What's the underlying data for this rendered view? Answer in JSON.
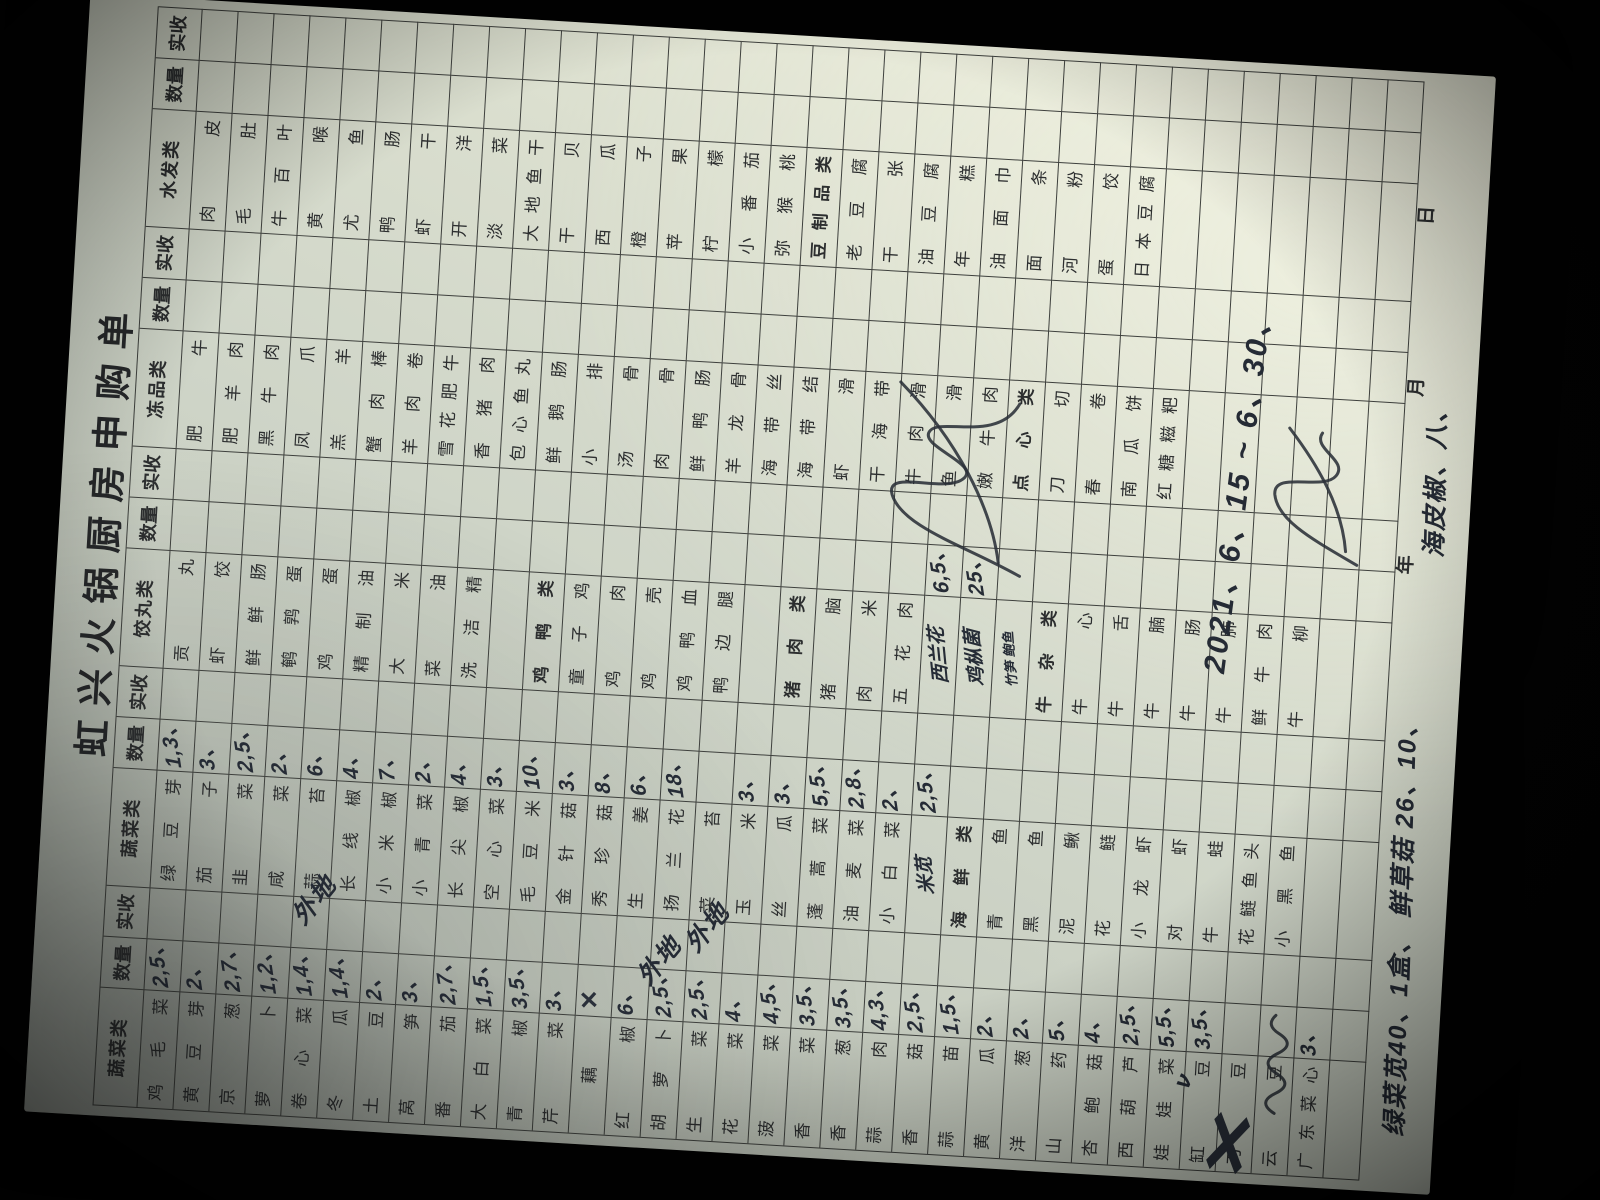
{
  "title": "虹兴火锅厨房申购单",
  "header": {
    "qty_label": "数量",
    "recv_label": "实收"
  },
  "date_labels": {
    "year": "年",
    "month": "月",
    "day": "日"
  },
  "ink_color": "#262c36",
  "groups": [
    {
      "category": "蔬菜类",
      "items": [
        {
          "name": "鸡毛菜",
          "qty": "2,5、"
        },
        {
          "name": "黄豆芽",
          "qty": "2、"
        },
        {
          "name": "京葱",
          "qty": "2,7、"
        },
        {
          "name": "萝卜",
          "qty": "1,2、"
        },
        {
          "name": "卷心菜",
          "qty": "1,4、"
        },
        {
          "name": "冬瓜",
          "qty": "1,4、"
        },
        {
          "name": "土豆",
          "qty": "2、"
        },
        {
          "name": "莴笋",
          "qty": "3、"
        },
        {
          "name": "番茄",
          "qty": "2,7、"
        },
        {
          "name": "大白菜",
          "qty": "1,5、"
        },
        {
          "name": "青椒",
          "qty": "3,5、"
        },
        {
          "name": "芹菜",
          "qty": "3、"
        },
        {
          "name": "藕",
          "qty": "✗"
        },
        {
          "name": "红椒",
          "qty": "6、"
        },
        {
          "name": "胡萝卜",
          "qty": "2,5、"
        },
        {
          "name": "生菜",
          "qty": "2,5、"
        },
        {
          "name": "花菜",
          "qty": "4、"
        },
        {
          "name": "菠菜",
          "qty": "4,5、"
        },
        {
          "name": "香菜",
          "qty": "3,5、"
        },
        {
          "name": "香葱",
          "qty": "3,5、"
        },
        {
          "name": "蒜肉",
          "qty": "4,3、"
        },
        {
          "name": "香菇",
          "qty": "2,5、"
        },
        {
          "name": "蒜苗",
          "qty": "1,5、"
        },
        {
          "name": "黄瓜",
          "qty": "2、"
        },
        {
          "name": "洋葱",
          "qty": "2、"
        },
        {
          "name": "山药",
          "qty": "5、"
        },
        {
          "name": "杏鲍菇",
          "qty": "4、"
        },
        {
          "name": "西葫芦",
          "qty": "2,5、"
        },
        {
          "name": "娃娃菜",
          "qty": "5,5、"
        },
        {
          "name": "缸豆",
          "qty": "3,5、"
        },
        {
          "name": "刀豆",
          "crossed": true
        },
        {
          "name": "云豆"
        },
        {
          "name": "广东菜心",
          "qty": "3、"
        },
        null
      ]
    },
    {
      "category": "蔬菜类",
      "items": [
        {
          "name": "绿豆芽",
          "qty": "1,3、"
        },
        {
          "name": "茄子",
          "qty": "3、"
        },
        {
          "name": "韭菜",
          "qty": "2,5、"
        },
        {
          "name": "咸菜",
          "qty": "2、"
        },
        {
          "name": "蒜苔",
          "qty": "6、"
        },
        {
          "name": "长线椒",
          "qty": "4、"
        },
        {
          "name": "小米椒",
          "qty": "7、"
        },
        {
          "name": "小青菜",
          "qty": "2、"
        },
        {
          "name": "长尖椒",
          "qty": "4、"
        },
        {
          "name": "空心菜",
          "qty": "3、"
        },
        {
          "name": "毛豆米",
          "qty": "10、"
        },
        {
          "name": "金针菇",
          "qty": "3、"
        },
        {
          "name": "秀珍菇",
          "qty": "8、"
        },
        {
          "name": "生姜",
          "qty": "6、"
        },
        {
          "name": "扬兰花",
          "qty": "18、"
        },
        {
          "name": "菜苔"
        },
        {
          "name": "玉米",
          "qty": "3、"
        },
        {
          "name": "丝瓜",
          "qty": "3、"
        },
        {
          "name": "蓬蒿菜",
          "qty": "5,5、"
        },
        {
          "name": "油麦菜",
          "qty": "2,8、"
        },
        {
          "name": "小白菜",
          "qty": "2、"
        },
        {
          "name": "米苋",
          "qty": "2,5、",
          "type": "hw"
        },
        {
          "name": "海鲜类",
          "type": "sub"
        },
        {
          "name": "青鱼"
        },
        {
          "name": "黑鱼"
        },
        {
          "name": "泥鳅"
        },
        {
          "name": "花鲢"
        },
        {
          "name": "小龙虾"
        },
        {
          "name": "对虾"
        },
        {
          "name": "牛蛙"
        },
        {
          "name": "花鲢鱼头"
        },
        {
          "name": "小黑鱼"
        },
        null,
        null
      ]
    },
    {
      "category": "饺丸类",
      "items": [
        {
          "name": "贡丸"
        },
        {
          "name": "虾饺"
        },
        {
          "name": "鲜鲜肠"
        },
        {
          "name": "鹌鹑蛋"
        },
        {
          "name": "鸡蛋"
        },
        {
          "name": "精制油"
        },
        {
          "name": "大米"
        },
        {
          "name": "菜油"
        },
        {
          "name": "洗洁精"
        },
        null,
        {
          "name": "鸡鸭类",
          "type": "sub"
        },
        {
          "name": "童子鸡"
        },
        {
          "name": "鸡肉"
        },
        {
          "name": "鸡壳"
        },
        {
          "name": "鸡鸭血"
        },
        {
          "name": "鸭边腿"
        },
        null,
        {
          "name": "猪肉类",
          "type": "sub"
        },
        {
          "name": "猪脑"
        },
        {
          "name": "肉米"
        },
        {
          "name": "五花肉"
        },
        {
          "name": "西兰花",
          "qty": "6,5、",
          "type": "hw"
        },
        {
          "name": "鸡枞菌",
          "qty": "25、",
          "type": "hw"
        },
        {
          "name": "竹笋 鲍鱼",
          "type": "hwsmall"
        },
        {
          "name": "牛杂类",
          "type": "sub"
        },
        {
          "name": "牛心"
        },
        {
          "name": "牛舌"
        },
        {
          "name": "牛腩"
        },
        {
          "name": "牛肠"
        },
        {
          "name": "牛肺"
        },
        {
          "name": "鲜牛肉"
        },
        {
          "name": "牛柳"
        },
        null,
        null
      ]
    },
    {
      "category": "冻品类",
      "items": [
        {
          "name": "肥牛"
        },
        {
          "name": "肥羊肉"
        },
        {
          "name": "黑牛肉"
        },
        {
          "name": "凤爪"
        },
        {
          "name": "羔羊"
        },
        {
          "name": "蟹肉棒"
        },
        {
          "name": "羊肉卷"
        },
        {
          "name": "雪花肥牛"
        },
        {
          "name": "香猪肉"
        },
        {
          "name": "包心鱼丸"
        },
        {
          "name": "鲜鹅肠"
        },
        {
          "name": "小排"
        },
        {
          "name": "汤骨"
        },
        {
          "name": "肉骨"
        },
        {
          "name": "鲜鸭肠"
        },
        {
          "name": "羊龙骨"
        },
        {
          "name": "海带丝"
        },
        {
          "name": "海带结"
        },
        {
          "name": "虾滑"
        },
        {
          "name": "干海带"
        },
        {
          "name": "牛肉滑"
        },
        {
          "name": "鱼滑"
        },
        {
          "name": "嫩牛肉"
        },
        {
          "name": "点心类",
          "type": "sub"
        },
        {
          "name": "刀切"
        },
        {
          "name": "春卷"
        },
        {
          "name": "南瓜饼"
        },
        {
          "name": "红糖糍粑"
        },
        null,
        null,
        null,
        null,
        null,
        null
      ]
    },
    {
      "category": "水发类",
      "items": [
        {
          "name": "肉皮"
        },
        {
          "name": "毛肚"
        },
        {
          "name": "牛百叶"
        },
        {
          "name": "黄喉"
        },
        {
          "name": "尤鱼"
        },
        {
          "name": "鸭肠"
        },
        {
          "name": "虾干"
        },
        {
          "name": "开洋"
        },
        {
          "name": "淡菜"
        },
        {
          "name": "大地鱼干"
        },
        {
          "name": "干贝"
        },
        {
          "name": "西瓜"
        },
        {
          "name": "橙子"
        },
        {
          "name": "苹果"
        },
        {
          "name": "柠檬"
        },
        {
          "name": "小番茄"
        },
        {
          "name": "弥猴桃"
        },
        {
          "name": "豆制品类",
          "type": "sub"
        },
        {
          "name": "老豆腐"
        },
        {
          "name": "干张"
        },
        {
          "name": "油豆腐"
        },
        {
          "name": "年糕"
        },
        {
          "name": "油面巾"
        },
        {
          "name": "面条"
        },
        {
          "name": "河粉"
        },
        {
          "name": "蛋饺"
        },
        {
          "name": "日本豆腐"
        },
        null,
        null,
        null,
        null,
        null,
        null,
        null
      ]
    }
  ],
  "handwritten": {
    "period_note": "2021、6、15 ~ 6、30、",
    "bottom_margin_note": "绿菜苋40、1盒、 鲜草菇 26、10、",
    "bottom_margin_note2": "海皮椒、八、",
    "out_of_town": [
      "外地",
      "外地",
      "外地"
    ],
    "check_mark": "ν"
  }
}
